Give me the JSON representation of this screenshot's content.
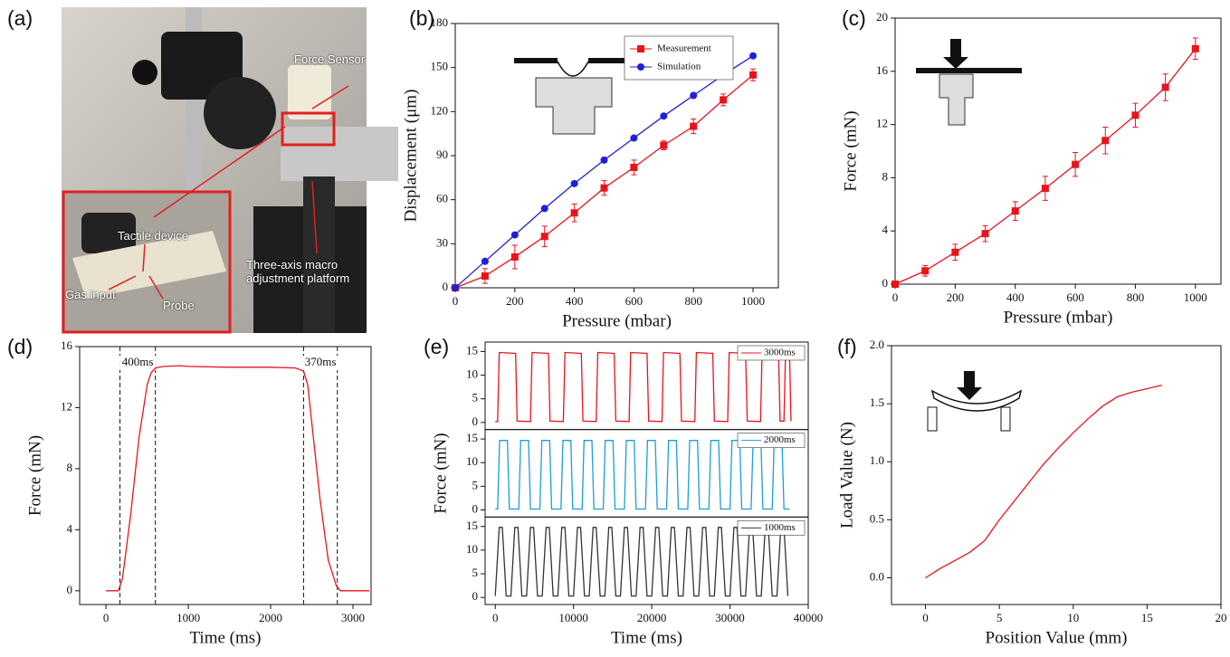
{
  "photo": {
    "panel": "(a)",
    "labels": [
      "Force Sensor",
      "Tactile device",
      "Gas input",
      "Probe",
      "Three-axis macro adjustment platform"
    ]
  },
  "chart_data": [
    {
      "panel": "(b)",
      "type": "line",
      "xlabel": "Pressure (mbar)",
      "ylabel": "Displacement (μm)",
      "x": [
        0,
        100,
        200,
        300,
        400,
        500,
        600,
        700,
        800,
        900,
        1000
      ],
      "series": [
        {
          "name": "Measurement",
          "color": "#e8141c",
          "marker": "square",
          "values": [
            0,
            8,
            21,
            35,
            51,
            68,
            82,
            97,
            110,
            128,
            145
          ],
          "errors": [
            0,
            5,
            8,
            7,
            6,
            5,
            5,
            3,
            5,
            4,
            4
          ]
        },
        {
          "name": "Simulation",
          "color": "#1f1fd6",
          "marker": "circle",
          "values": [
            0,
            18,
            36,
            54,
            71,
            87,
            102,
            117,
            131,
            145,
            158
          ]
        }
      ],
      "xlim": [
        0,
        1085
      ],
      "ylim": [
        0,
        180
      ],
      "xticks": [
        0,
        200,
        400,
        600,
        800,
        1000
      ],
      "yticks": [
        0,
        30,
        60,
        90,
        120,
        150,
        180
      ],
      "legend": "upper right"
    },
    {
      "panel": "(c)",
      "type": "line",
      "xlabel": "Pressure (mbar)",
      "ylabel": "Force (mN)",
      "x": [
        0,
        100,
        200,
        300,
        400,
        500,
        600,
        700,
        800,
        900,
        1000
      ],
      "series": [
        {
          "color": "#e8141c",
          "marker": "square",
          "values": [
            0,
            1.0,
            2.4,
            3.8,
            5.5,
            7.2,
            9.0,
            10.8,
            12.7,
            14.8,
            17.7
          ],
          "errors": [
            0,
            0.4,
            0.6,
            0.6,
            0.7,
            0.9,
            0.9,
            1.0,
            0.9,
            1.0,
            0.8
          ]
        }
      ],
      "xlim": [
        0,
        1085
      ],
      "ylim": [
        0,
        20
      ],
      "xticks": [
        0,
        200,
        400,
        600,
        800,
        1000
      ],
      "yticks": [
        0,
        4,
        8,
        12,
        16,
        20
      ]
    },
    {
      "panel": "(d)",
      "type": "line",
      "xlabel": "Time (ms)",
      "ylabel": "Force (mN)",
      "x": [
        0,
        150,
        200,
        300,
        400,
        500,
        550,
        600,
        700,
        900,
        1000,
        1500,
        2000,
        2300,
        2400,
        2450,
        2500,
        2600,
        2700,
        2800,
        2850,
        3000,
        3200
      ],
      "series": [
        {
          "color": "#e8141c",
          "values": [
            0,
            0,
            0.8,
            5,
            10,
            13.5,
            14.3,
            14.6,
            14.7,
            14.75,
            14.7,
            14.65,
            14.65,
            14.6,
            14.4,
            13.5,
            11,
            6,
            2,
            0.3,
            0,
            0,
            0
          ]
        }
      ],
      "vlines": [
        170,
        600,
        2400,
        2810
      ],
      "annotations": [
        "400ms",
        "370ms"
      ],
      "xlim": [
        -320,
        3220
      ],
      "ylim": [
        -0.9,
        16
      ],
      "xticks": [
        0,
        1000,
        2000,
        3000
      ],
      "yticks": [
        0,
        4,
        8,
        12,
        16
      ]
    },
    {
      "panel": "(e)",
      "type": "stacked-line",
      "xlabel": "Time (ms)",
      "ylabel": "Force (mN)",
      "subplots": [
        {
          "series": [
            {
              "name": "3000ms",
              "color": "#e8141c",
              "x": [
                0,
                300,
                500,
                2600,
                2800,
                4500,
                4700,
                6800,
                7000,
                8700,
                8900,
                11000,
                11200,
                12900,
                13100,
                15200,
                15400,
                17100,
                17300,
                19400,
                19600,
                21300,
                21500,
                23600,
                23800,
                25500,
                25700,
                27800,
                28000,
                29700,
                29900,
                32000,
                32200,
                33900,
                34100,
                36200,
                36400,
                36900,
                37100,
                37600,
                37800
              ],
              "values": [
                0.2,
                0.2,
                14.8,
                14.6,
                0.3,
                0.2,
                14.8,
                14.6,
                0.3,
                0.2,
                14.8,
                14.6,
                0.3,
                0.2,
                14.8,
                14.6,
                0.3,
                0.2,
                14.8,
                14.6,
                0.3,
                0.2,
                14.8,
                14.6,
                0.3,
                0.2,
                14.8,
                14.6,
                0.3,
                0.2,
                14.8,
                14.6,
                0.3,
                0.2,
                14.8,
                14.6,
                0.3,
                0.3,
                14.8,
                14.8,
                0.3
              ]
            }
          ]
        },
        {
          "series": [
            {
              "name": "2000ms",
              "color": "#1a9ed8",
              "x": [
                0,
                300,
                550,
                1550,
                1800,
                3000,
                3250,
                4250,
                4500,
                5700,
                5950,
                6950,
                7200,
                8400,
                8650,
                9650,
                9900,
                11100,
                11350,
                12350,
                12600,
                13800,
                14050,
                15050,
                15300,
                16500,
                16750,
                17750,
                18000,
                19200,
                19450,
                20450,
                20700,
                21900,
                22150,
                23150,
                23400,
                24600,
                24850,
                25850,
                26100,
                27300,
                27550,
                28550,
                28800,
                30000,
                30250,
                31250,
                31500,
                32700,
                32950,
                33950,
                34200,
                35400,
                35650,
                36650,
                36900,
                37600
              ],
              "values": [
                0.2,
                0.2,
                14.7,
                14.7,
                0.2,
                0.2,
                14.7,
                14.7,
                0.2,
                0.2,
                14.7,
                14.7,
                0.2,
                0.2,
                14.7,
                14.7,
                0.2,
                0.2,
                14.7,
                14.7,
                0.2,
                0.2,
                14.7,
                14.7,
                0.2,
                0.2,
                14.7,
                14.7,
                0.2,
                0.2,
                14.7,
                14.7,
                0.2,
                0.2,
                14.7,
                14.7,
                0.2,
                0.2,
                14.7,
                14.7,
                0.2,
                0.2,
                14.7,
                14.7,
                0.2,
                0.2,
                14.7,
                14.7,
                0.2,
                0.2,
                14.7,
                14.7,
                0.2,
                0.2,
                14.7,
                14.7,
                0.2,
                0.2
              ]
            }
          ]
        },
        {
          "series": [
            {
              "name": "1000ms",
              "color": "#333333",
              "x": [
                0,
                500,
                900,
                1400,
                2000,
                2500,
                2900,
                3400,
                4000,
                4500,
                4900,
                5400,
                6000,
                6500,
                6900,
                7400,
                8000,
                8500,
                8900,
                9400,
                10000,
                10500,
                10900,
                11400,
                12000,
                12500,
                12900,
                13400,
                14000,
                14500,
                14900,
                15400,
                16000,
                16500,
                16900,
                17400,
                18000,
                18500,
                18900,
                19400,
                20000,
                20500,
                20900,
                21400,
                22000,
                22500,
                22900,
                23400,
                24000,
                24500,
                24900,
                25400,
                26000,
                26500,
                26900,
                27400,
                28000,
                28500,
                28900,
                29400,
                30000,
                30500,
                30900,
                31400,
                32000,
                32500,
                32900,
                33400,
                34000,
                34500,
                34900,
                35400,
                36000,
                36500,
                36900,
                37400
              ],
              "values": [
                0.3,
                14.8,
                14.8,
                0.3,
                0.3,
                14.8,
                14.8,
                0.3,
                0.3,
                14.8,
                14.8,
                0.3,
                0.3,
                14.8,
                14.8,
                0.3,
                0.3,
                14.8,
                14.8,
                0.3,
                0.3,
                14.8,
                14.8,
                0.3,
                0.3,
                14.8,
                14.8,
                0.3,
                0.3,
                14.8,
                14.8,
                0.3,
                0.3,
                14.8,
                14.8,
                0.3,
                0.3,
                14.8,
                14.8,
                0.3,
                0.3,
                14.8,
                14.8,
                0.3,
                0.3,
                14.8,
                14.8,
                0.3,
                0.3,
                14.8,
                14.8,
                0.3,
                0.3,
                14.8,
                14.8,
                0.3,
                0.3,
                14.8,
                14.8,
                0.3,
                0.3,
                14.8,
                14.8,
                0.3,
                0.3,
                14.8,
                14.8,
                0.3,
                0.3,
                14.8,
                14.8,
                0.3,
                0.3,
                14.8,
                14.8,
                0.3
              ]
            }
          ]
        }
      ],
      "xlim": [
        -1300,
        40000
      ],
      "ylim": [
        -1.5,
        17
      ],
      "xticks": [
        0,
        10000,
        20000,
        30000,
        40000
      ],
      "yticks": [
        0,
        5,
        10,
        15
      ]
    },
    {
      "panel": "(f)",
      "type": "line",
      "xlabel": "Position Value (mm)",
      "ylabel": "Load Value (N)",
      "x": [
        0,
        1,
        2,
        3,
        4,
        5,
        6,
        7,
        8,
        9,
        10,
        11,
        12,
        13,
        14,
        15,
        16
      ],
      "series": [
        {
          "color": "#e8141c",
          "values": [
            0,
            0.08,
            0.15,
            0.22,
            0.32,
            0.5,
            0.66,
            0.82,
            0.98,
            1.12,
            1.25,
            1.37,
            1.48,
            1.56,
            1.6,
            1.63,
            1.66
          ]
        }
      ],
      "xlim": [
        -2.3,
        20
      ],
      "ylim": [
        -0.23,
        2.0
      ],
      "xticks": [
        0,
        5,
        10,
        15,
        20
      ],
      "yticks": [
        {
          "value": 0,
          "label": "0.0"
        },
        {
          "value": 0.5,
          "label": "0.5"
        },
        {
          "value": 1,
          "label": "1.0"
        },
        {
          "value": 1.5,
          "label": "1.5"
        },
        {
          "value": 2,
          "label": "2.0"
        }
      ]
    }
  ]
}
